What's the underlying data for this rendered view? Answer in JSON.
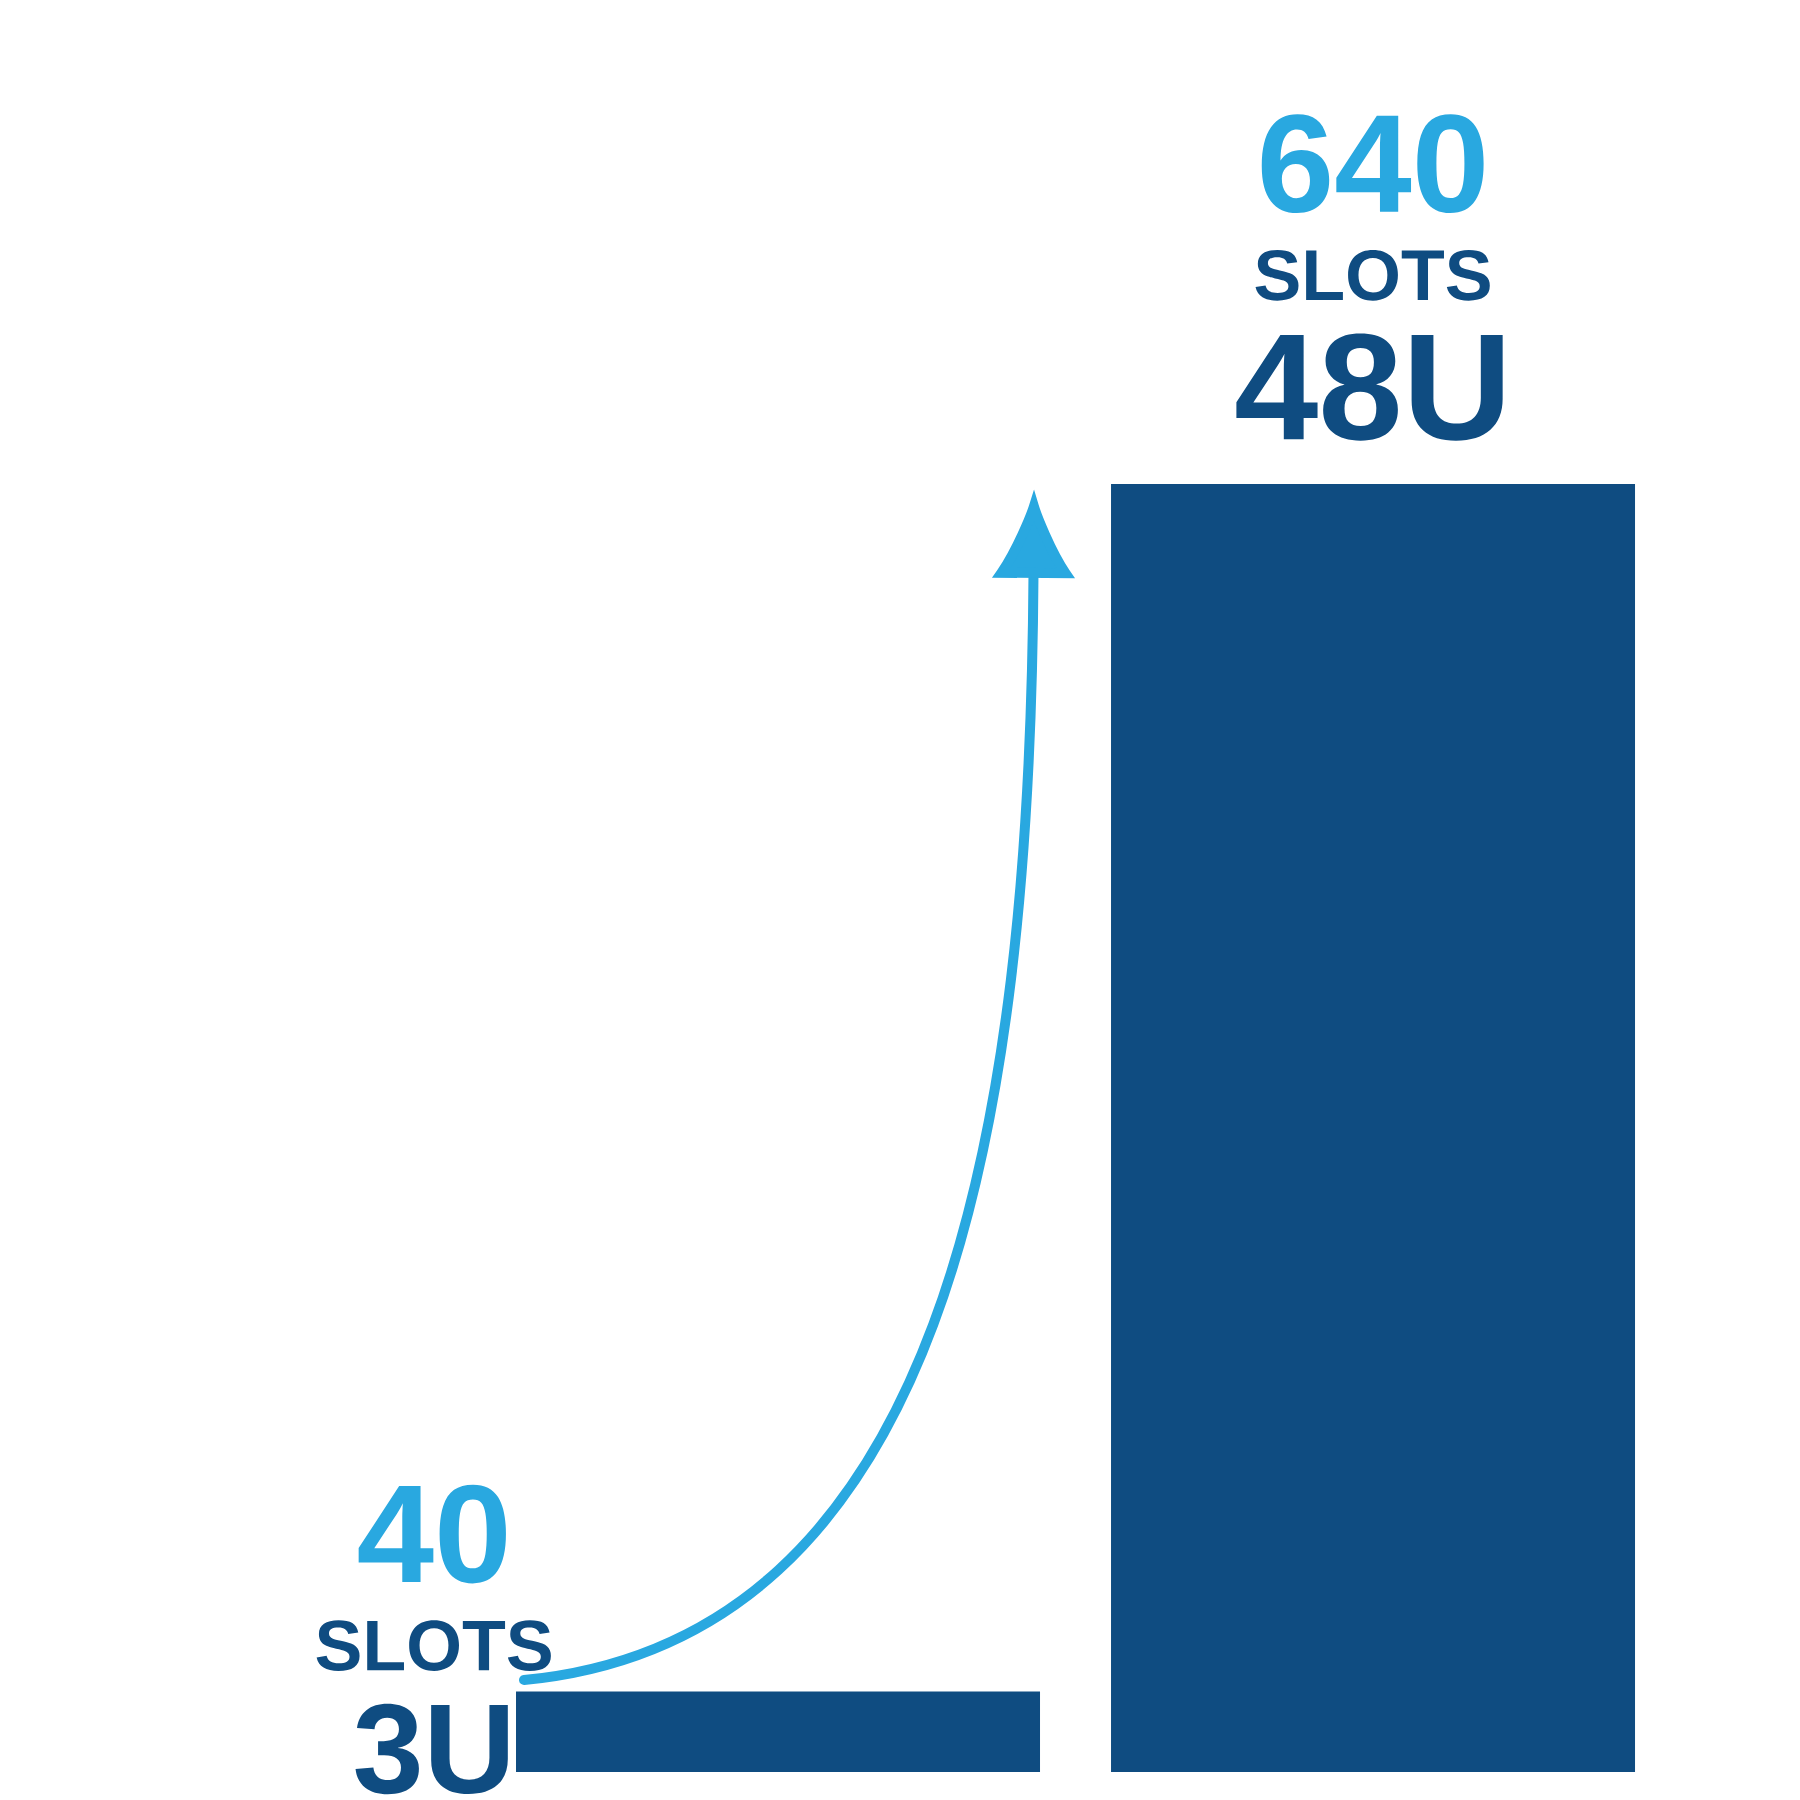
{
  "chart_data": {
    "type": "bar",
    "categories": [
      null,
      null
    ],
    "values": [
      3,
      48
    ],
    "colors": [
      "#0f4c81",
      "#0f4c81"
    ],
    "value_labels": [
      "3U",
      "48U"
    ],
    "annotations": [
      "40",
      "SLOTS",
      "640",
      "SLOTS"
    ]
  }
}
